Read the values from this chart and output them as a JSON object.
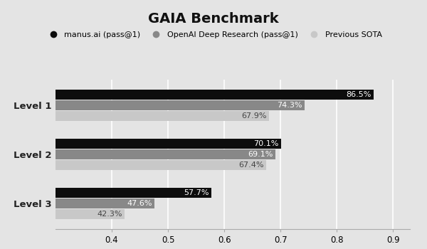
{
  "title": "GAIA Benchmark",
  "background_color": "#e4e4e4",
  "plot_bg_color": "#e4e4e4",
  "categories": [
    "Level 1",
    "Level 2",
    "Level 3"
  ],
  "series": [
    {
      "name": "manus.ai (pass@1)",
      "values": [
        0.865,
        0.701,
        0.577
      ],
      "color": "#0d0d0d",
      "label_color": "white",
      "marker": "circle_black"
    },
    {
      "name": "OpenAI Deep Research (pass@1)",
      "values": [
        0.743,
        0.691,
        0.476
      ],
      "color": "#888888",
      "label_color": "white",
      "marker": "circle_gray"
    },
    {
      "name": "Previous SOTA",
      "values": [
        0.679,
        0.674,
        0.423
      ],
      "color": "#c8c8c8",
      "label_color": "#444444",
      "marker": "circle_light"
    }
  ],
  "xlim": [
    0.3,
    0.93
  ],
  "xticks": [
    0.4,
    0.5,
    0.6,
    0.7,
    0.8,
    0.9
  ],
  "bar_height": 0.2,
  "title_fontsize": 14,
  "label_fontsize": 8,
  "tick_fontsize": 8.5,
  "legend_fontsize": 8,
  "ylabel_fontsize": 9.5,
  "grid_color": "#ffffff",
  "grid_lw": 1.2
}
